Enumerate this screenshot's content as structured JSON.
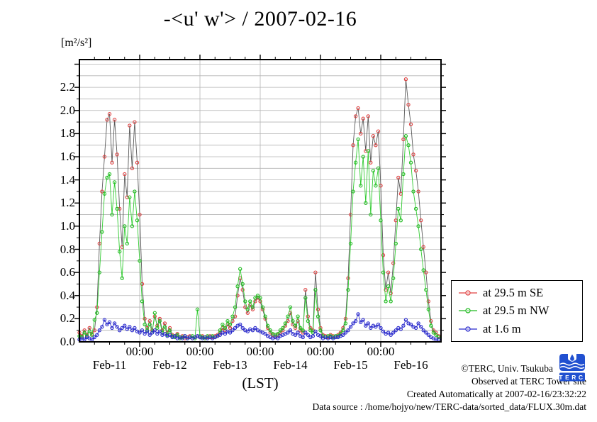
{
  "title": "-<u' w'> / 2007-02-16",
  "y_unit_label": "[m²/s²]",
  "x_axis": {
    "midnight_label": "00:00",
    "day_labels": [
      "Feb-11",
      "Feb-12",
      "Feb-13",
      "Feb-14",
      "Feb-15",
      "Feb-16"
    ],
    "axis_label": "(LST)"
  },
  "y_axis": {
    "tick_labels": [
      "0.0",
      "0.2",
      "0.4",
      "0.6",
      "0.8",
      "1.0",
      "1.2",
      "1.4",
      "1.6",
      "1.8",
      "2.0",
      "2.2"
    ]
  },
  "legend": {
    "items": [
      "at 29.5 m SE",
      "at 29.5 m NW",
      "at 1.6 m"
    ]
  },
  "footer": {
    "copyright": "©TERC, Univ. Tsukuba",
    "observed": "Observed at TERC Tower site",
    "created": "Created Automatically at 2007-02-16/23:32:22",
    "datasource": "Data source : /home/hojyo/new/TERC-data/sorted_data/FLUX.30m.dat"
  },
  "logo": {
    "text": "TERC",
    "color": "#2150d0"
  },
  "chart_data": {
    "type": "line",
    "title": "-<u' w'> / 2007-02-16",
    "xlabel": "(LST)",
    "ylabel": "[m²/s²]",
    "x_unit": "hours since 2007-02-11 00:00 LST, one point per hour",
    "x_range_days": [
      "Feb-11",
      "Feb-17"
    ],
    "ylim": [
      0,
      2.44
    ],
    "ytick_step": 0.2,
    "grid": "every 0.1 horizontal, every midnight vertical",
    "legend_position": "outside right bottom",
    "series": [
      {
        "name": "at 29.5 m SE",
        "marker_color": "#e04040",
        "line_color": "#5a5a5a",
        "values": [
          0.08,
          0.05,
          0.1,
          0.06,
          0.12,
          0.07,
          0.1,
          0.3,
          0.85,
          1.3,
          1.6,
          1.92,
          1.97,
          1.55,
          1.92,
          1.62,
          1.15,
          0.82,
          1.45,
          1.25,
          1.87,
          1.5,
          1.9,
          1.55,
          1.1,
          0.5,
          0.2,
          0.12,
          0.18,
          0.1,
          0.22,
          0.14,
          0.2,
          0.1,
          0.16,
          0.08,
          0.12,
          0.06,
          0.05,
          0.07,
          0.04,
          0.05,
          0.03,
          0.04,
          0.05,
          0.03,
          0.04,
          0.05,
          0.04,
          0.05,
          0.03,
          0.04,
          0.05,
          0.04,
          0.05,
          0.06,
          0.08,
          0.12,
          0.1,
          0.15,
          0.12,
          0.18,
          0.22,
          0.4,
          0.55,
          0.45,
          0.3,
          0.25,
          0.32,
          0.28,
          0.35,
          0.38,
          0.35,
          0.28,
          0.2,
          0.12,
          0.08,
          0.06,
          0.05,
          0.06,
          0.08,
          0.1,
          0.14,
          0.18,
          0.25,
          0.15,
          0.12,
          0.18,
          0.1,
          0.08,
          0.45,
          0.22,
          0.12,
          0.1,
          0.6,
          0.28,
          0.12,
          0.06,
          0.05,
          0.04,
          0.06,
          0.05,
          0.04,
          0.06,
          0.08,
          0.12,
          0.2,
          0.55,
          1.1,
          1.7,
          1.95,
          2.02,
          1.8,
          1.93,
          1.65,
          1.95,
          1.55,
          1.78,
          1.7,
          1.82,
          1.35,
          0.75,
          0.45,
          0.6,
          0.42,
          0.68,
          1.05,
          1.42,
          1.28,
          1.75,
          2.27,
          2.05,
          1.88,
          1.62,
          1.48,
          1.3,
          1.05,
          0.82,
          0.6,
          0.35,
          0.18,
          0.1,
          0.08,
          0.05
        ]
      },
      {
        "name": "at 29.5 m NW",
        "marker_color": "#22bb22",
        "line_color": "#33cc33",
        "values": [
          0.05,
          0.04,
          0.08,
          0.05,
          0.09,
          0.06,
          0.19,
          0.25,
          0.6,
          0.95,
          1.28,
          1.42,
          1.45,
          1.1,
          1.38,
          1.15,
          0.78,
          0.55,
          1.0,
          0.85,
          1.25,
          1.0,
          1.3,
          1.05,
          0.7,
          0.35,
          0.15,
          0.1,
          0.15,
          0.08,
          0.25,
          0.12,
          0.18,
          0.08,
          0.13,
          0.06,
          0.1,
          0.05,
          0.04,
          0.06,
          0.03,
          0.04,
          0.05,
          0.03,
          0.04,
          0.05,
          0.03,
          0.28,
          0.05,
          0.04,
          0.03,
          0.05,
          0.04,
          0.05,
          0.04,
          0.05,
          0.1,
          0.15,
          0.12,
          0.18,
          0.15,
          0.22,
          0.3,
          0.48,
          0.63,
          0.5,
          0.35,
          0.28,
          0.35,
          0.3,
          0.38,
          0.4,
          0.38,
          0.3,
          0.22,
          0.14,
          0.1,
          0.07,
          0.06,
          0.07,
          0.1,
          0.12,
          0.16,
          0.22,
          0.3,
          0.18,
          0.14,
          0.22,
          0.12,
          0.1,
          0.38,
          0.18,
          0.1,
          0.08,
          0.45,
          0.22,
          0.1,
          0.05,
          0.04,
          0.05,
          0.05,
          0.04,
          0.05,
          0.05,
          0.07,
          0.1,
          0.16,
          0.45,
          0.85,
          1.3,
          1.55,
          1.75,
          1.35,
          1.6,
          1.2,
          1.65,
          1.1,
          1.48,
          1.35,
          1.5,
          1.05,
          0.6,
          0.35,
          0.48,
          0.35,
          0.55,
          0.85,
          1.15,
          1.05,
          1.45,
          1.78,
          1.7,
          1.55,
          1.3,
          1.15,
          1.0,
          0.8,
          0.62,
          0.45,
          0.28,
          0.14,
          0.08,
          0.06,
          0.04
        ]
      },
      {
        "name": "at 1.6 m",
        "marker_color": "#2828cc",
        "line_color": "#3333cc",
        "values": [
          0.02,
          0.03,
          0.02,
          0.04,
          0.03,
          0.02,
          0.04,
          0.06,
          0.1,
          0.13,
          0.19,
          0.15,
          0.17,
          0.12,
          0.16,
          0.13,
          0.1,
          0.12,
          0.14,
          0.11,
          0.13,
          0.1,
          0.12,
          0.09,
          0.08,
          0.1,
          0.07,
          0.09,
          0.06,
          0.08,
          0.1,
          0.07,
          0.09,
          0.06,
          0.07,
          0.05,
          0.06,
          0.04,
          0.05,
          0.03,
          0.04,
          0.03,
          0.05,
          0.03,
          0.04,
          0.03,
          0.04,
          0.05,
          0.04,
          0.03,
          0.04,
          0.03,
          0.04,
          0.03,
          0.04,
          0.05,
          0.06,
          0.08,
          0.07,
          0.09,
          0.08,
          0.1,
          0.12,
          0.14,
          0.15,
          0.12,
          0.1,
          0.09,
          0.11,
          0.1,
          0.12,
          0.1,
          0.09,
          0.08,
          0.07,
          0.05,
          0.04,
          0.03,
          0.04,
          0.03,
          0.05,
          0.06,
          0.07,
          0.08,
          0.1,
          0.07,
          0.06,
          0.08,
          0.05,
          0.04,
          0.08,
          0.06,
          0.04,
          0.05,
          0.09,
          0.06,
          0.05,
          0.03,
          0.04,
          0.03,
          0.04,
          0.03,
          0.04,
          0.04,
          0.05,
          0.06,
          0.08,
          0.1,
          0.13,
          0.16,
          0.18,
          0.24,
          0.17,
          0.19,
          0.14,
          0.16,
          0.12,
          0.14,
          0.13,
          0.15,
          0.12,
          0.09,
          0.07,
          0.08,
          0.06,
          0.08,
          0.1,
          0.12,
          0.11,
          0.14,
          0.19,
          0.16,
          0.15,
          0.13,
          0.12,
          0.16,
          0.13,
          0.1,
          0.08,
          0.06,
          0.04,
          0.03,
          0.02,
          0.02
        ]
      }
    ]
  }
}
